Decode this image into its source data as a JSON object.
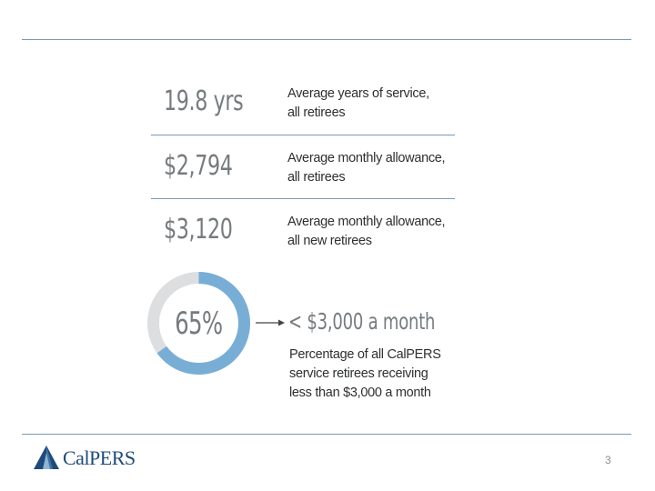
{
  "stats": [
    {
      "value": "19.8 yrs",
      "desc_line1": "Average years of service,",
      "desc_line2": "all retirees"
    },
    {
      "value": "$2,794",
      "desc_line1": "Average monthly allowance,",
      "desc_line2": "all retirees"
    },
    {
      "value": "$3,120",
      "desc_line1": "Average monthly allowance,",
      "desc_line2": "all new retirees"
    }
  ],
  "donut": {
    "label": "65%",
    "fraction": 0.65,
    "fill_color": "#78aed6",
    "track_color": "#dcdedf"
  },
  "callout": {
    "headline": "< $3,000 a month",
    "line1": "Percentage of all CalPERS",
    "line2": "service retirees receiving",
    "line3": "less than $3,000 a month"
  },
  "footer": {
    "logo_text": "CalPERS",
    "page_number": "3"
  },
  "colors": {
    "rule": "#7c99b3",
    "brand": "#1e4b7a",
    "stat_gray": "#767b7f"
  }
}
